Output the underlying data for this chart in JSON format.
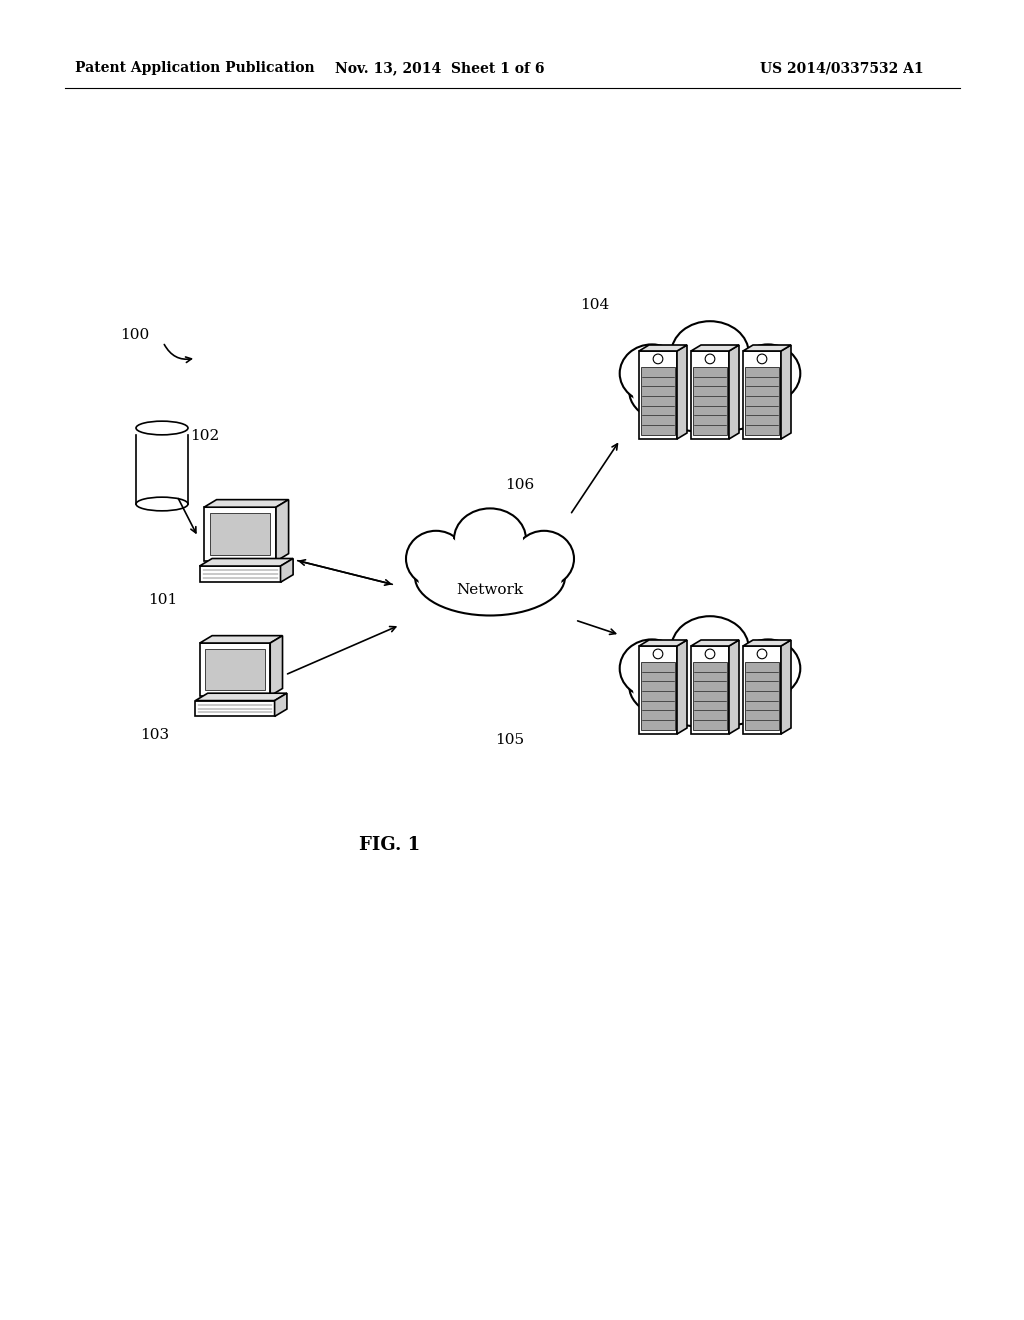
{
  "bg_color": "#ffffff",
  "header_left": "Patent Application Publication",
  "header_mid": "Nov. 13, 2014  Sheet 1 of 6",
  "header_right": "US 2014/0337532 A1",
  "fig_label": "FIG. 1"
}
